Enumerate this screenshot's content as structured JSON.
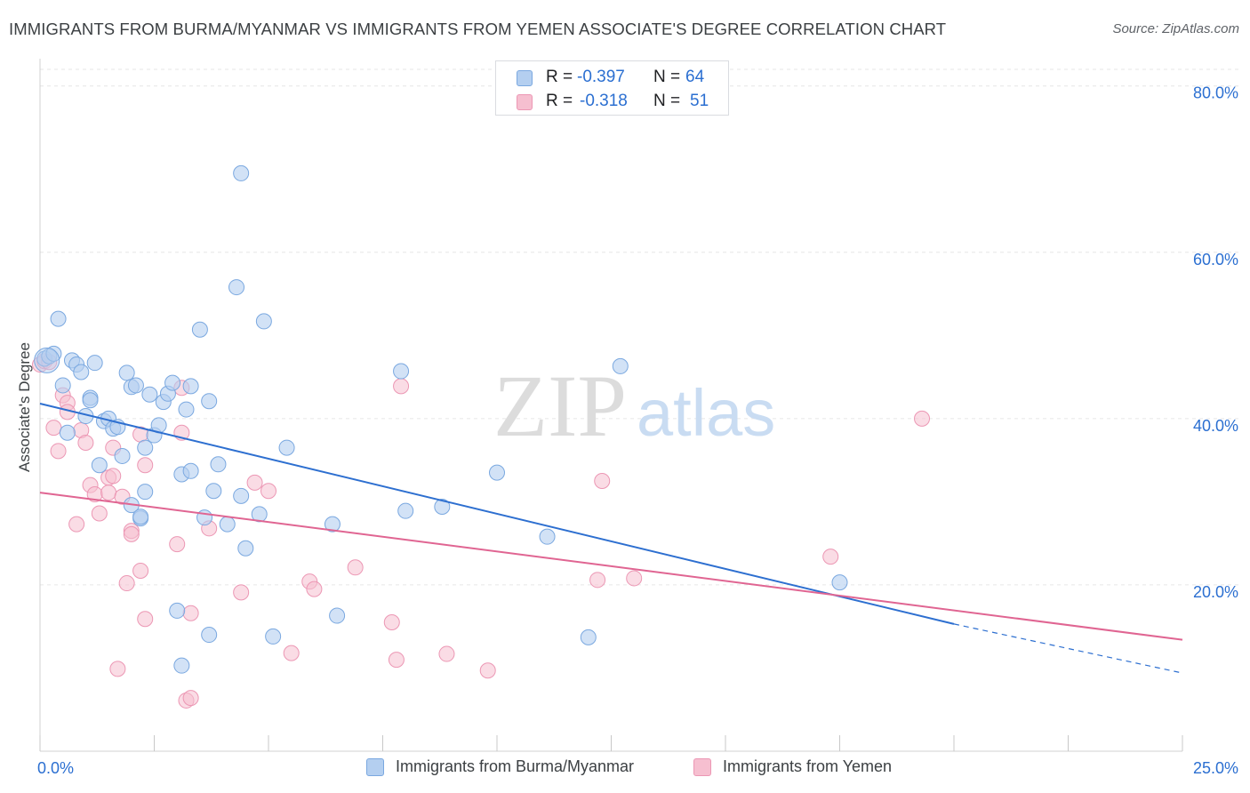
{
  "title": "IMMIGRANTS FROM BURMA/MYANMAR VS IMMIGRANTS FROM YEMEN ASSOCIATE'S DEGREE CORRELATION CHART",
  "source": "Source: ZipAtlas.com",
  "watermark": {
    "zip": "ZIP",
    "atlas": "atlas"
  },
  "legend": {
    "rows": [
      {
        "r_label": "R =",
        "r_value": "-0.397",
        "n_label": "N =",
        "n_value": "64"
      },
      {
        "r_label": "R =",
        "r_value": "-0.318",
        "n_label": "N =",
        "n_value": "51"
      }
    ]
  },
  "colors": {
    "blue_fill": "#b4cff0",
    "blue_stroke": "#7aa8e0",
    "blue_line": "#2d6fd0",
    "pink_fill": "#f6bfd0",
    "pink_stroke": "#ec97b4",
    "pink_line": "#e06592",
    "axis_text": "#2b6fd1",
    "grid": "#e6e6e6"
  },
  "chart_data": {
    "type": "scatter",
    "title": "IMMIGRANTS FROM BURMA/MYANMAR VS IMMIGRANTS FROM YEMEN ASSOCIATE'S DEGREE CORRELATION CHART",
    "xlabel": "",
    "ylabel": "Associate's Degree",
    "xlim": [
      0,
      25
    ],
    "ylim": [
      0,
      82
    ],
    "x_tick_labels": [
      "0.0%",
      "25.0%"
    ],
    "y_ticks": [
      20,
      40,
      60,
      80
    ],
    "y_tick_labels": [
      "20.0%",
      "40.0%",
      "60.0%",
      "80.0%"
    ],
    "grid": true,
    "legend_position": "bottom",
    "series": [
      {
        "name": "Immigrants from Burma/Myanmar",
        "color": "blue",
        "trend": {
          "x_start": 0,
          "y_start": 41.8,
          "x_end_solid": 20,
          "y_end_solid": 15.3,
          "x_end_dashed": 25,
          "y_end_dashed": 9.4
        },
        "points": [
          [
            0.1,
            47.2
          ],
          [
            0.2,
            47.5
          ],
          [
            0.3,
            47.8
          ],
          [
            0.4,
            52.0
          ],
          [
            0.5,
            44.0
          ],
          [
            0.6,
            38.3
          ],
          [
            0.7,
            47.0
          ],
          [
            0.8,
            46.5
          ],
          [
            0.9,
            45.6
          ],
          [
            1.0,
            40.3
          ],
          [
            1.1,
            42.5
          ],
          [
            1.1,
            42.2
          ],
          [
            1.2,
            46.7
          ],
          [
            1.3,
            34.4
          ],
          [
            1.4,
            39.7
          ],
          [
            1.5,
            40.0
          ],
          [
            1.6,
            38.8
          ],
          [
            1.7,
            39.0
          ],
          [
            1.8,
            35.5
          ],
          [
            1.9,
            45.5
          ],
          [
            2.0,
            43.8
          ],
          [
            2.0,
            29.6
          ],
          [
            2.1,
            44.0
          ],
          [
            2.2,
            28.0
          ],
          [
            2.3,
            36.5
          ],
          [
            2.3,
            31.2
          ],
          [
            2.4,
            42.9
          ],
          [
            2.5,
            38.0
          ],
          [
            2.6,
            39.2
          ],
          [
            2.7,
            42.0
          ],
          [
            2.8,
            43.0
          ],
          [
            2.9,
            44.3
          ],
          [
            3.1,
            33.3
          ],
          [
            3.2,
            41.1
          ],
          [
            3.3,
            33.7
          ],
          [
            3.3,
            43.9
          ],
          [
            3.5,
            50.7
          ],
          [
            3.6,
            28.1
          ],
          [
            3.7,
            42.1
          ],
          [
            3.8,
            31.3
          ],
          [
            3.9,
            34.5
          ],
          [
            4.1,
            27.3
          ],
          [
            4.3,
            55.8
          ],
          [
            4.4,
            30.7
          ],
          [
            4.4,
            69.5
          ],
          [
            4.5,
            24.4
          ],
          [
            4.8,
            28.5
          ],
          [
            4.9,
            51.7
          ],
          [
            5.1,
            13.8
          ],
          [
            5.4,
            36.5
          ],
          [
            6.4,
            27.3
          ],
          [
            6.5,
            16.3
          ],
          [
            7.9,
            45.7
          ],
          [
            8.0,
            28.9
          ],
          [
            8.8,
            29.4
          ],
          [
            10.0,
            33.5
          ],
          [
            11.1,
            25.8
          ],
          [
            12.0,
            13.7
          ],
          [
            12.7,
            46.3
          ],
          [
            17.5,
            20.3
          ],
          [
            3.0,
            16.9
          ],
          [
            3.1,
            10.3
          ],
          [
            3.7,
            14.0
          ],
          [
            2.2,
            28.2
          ]
        ]
      },
      {
        "name": "Immigrants from Yemen",
        "color": "pink",
        "trend": {
          "x_start": 0,
          "y_start": 31.1,
          "x_end": 25,
          "y_end": 13.4
        },
        "points": [
          [
            0.0,
            46.5
          ],
          [
            0.1,
            46.9
          ],
          [
            0.2,
            46.8
          ],
          [
            0.3,
            38.9
          ],
          [
            0.4,
            36.1
          ],
          [
            0.5,
            42.8
          ],
          [
            0.6,
            41.9
          ],
          [
            0.6,
            40.8
          ],
          [
            0.8,
            27.3
          ],
          [
            0.9,
            38.6
          ],
          [
            1.0,
            37.1
          ],
          [
            1.1,
            32.0
          ],
          [
            1.2,
            30.9
          ],
          [
            1.3,
            28.6
          ],
          [
            1.5,
            31.1
          ],
          [
            1.5,
            32.9
          ],
          [
            1.6,
            33.1
          ],
          [
            1.6,
            36.5
          ],
          [
            1.7,
            9.9
          ],
          [
            1.8,
            30.6
          ],
          [
            1.9,
            20.2
          ],
          [
            2.0,
            26.5
          ],
          [
            2.0,
            26.1
          ],
          [
            2.2,
            21.7
          ],
          [
            2.2,
            38.1
          ],
          [
            2.3,
            34.4
          ],
          [
            2.3,
            15.9
          ],
          [
            3.0,
            24.9
          ],
          [
            3.1,
            43.7
          ],
          [
            3.1,
            38.3
          ],
          [
            3.2,
            6.1
          ],
          [
            3.3,
            6.4
          ],
          [
            3.3,
            16.6
          ],
          [
            3.7,
            26.8
          ],
          [
            4.4,
            19.1
          ],
          [
            4.7,
            32.3
          ],
          [
            5.0,
            31.3
          ],
          [
            5.5,
            11.8
          ],
          [
            5.9,
            20.4
          ],
          [
            6.0,
            19.5
          ],
          [
            6.9,
            22.1
          ],
          [
            7.7,
            15.5
          ],
          [
            7.8,
            11.0
          ],
          [
            7.9,
            43.9
          ],
          [
            8.9,
            11.7
          ],
          [
            9.8,
            9.7
          ],
          [
            12.3,
            32.5
          ],
          [
            12.2,
            20.6
          ],
          [
            13.0,
            20.8
          ],
          [
            17.3,
            23.4
          ],
          [
            19.3,
            40.0
          ]
        ]
      }
    ]
  },
  "bottom_legend": {
    "items": [
      {
        "label": "Immigrants from Burma/Myanmar"
      },
      {
        "label": "Immigrants from Yemen"
      }
    ]
  }
}
